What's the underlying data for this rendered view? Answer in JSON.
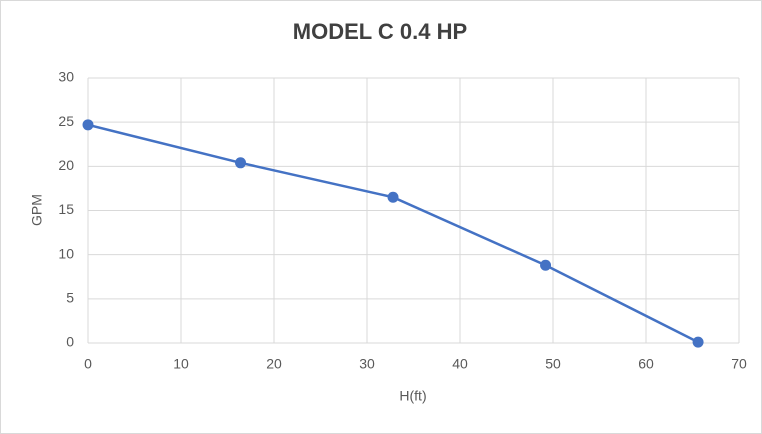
{
  "chart_data": {
    "type": "line",
    "title": "MODEL C 0.4 HP",
    "x_label": "H(ft)",
    "y_label": "GPM",
    "x": [
      0,
      16.4,
      32.8,
      49.2,
      65.6
    ],
    "values": [
      24.7,
      20.4,
      16.5,
      8.8,
      0.1
    ],
    "color": "#4472c4",
    "markers": true,
    "xlim": [
      0,
      70
    ],
    "xticks": [
      0,
      10,
      20,
      30,
      40,
      50,
      60,
      70
    ],
    "ylim": [
      0,
      30
    ],
    "yticks": [
      0,
      5,
      10,
      15,
      20,
      25,
      30
    ],
    "grid": true
  }
}
